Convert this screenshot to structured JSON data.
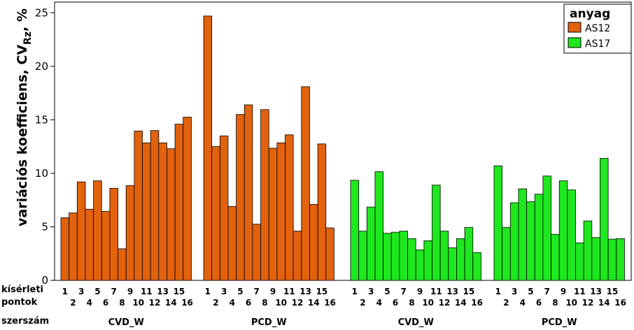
{
  "chart_data": {
    "type": "bar",
    "ylabel": "variációs koefficiens, CV",
    "ylabel_sub": "Rz",
    "ylabel_unit": ", %",
    "ylim": [
      0,
      26
    ],
    "yticks": [
      0,
      5,
      10,
      15,
      20,
      25
    ],
    "grid": false,
    "legend": {
      "title": "anyag",
      "placement": "top-right",
      "entries": [
        {
          "name": "AS12",
          "color": "#e2620e"
        },
        {
          "name": "AS17",
          "color": "#1ee81e"
        }
      ]
    },
    "row_labels": {
      "points_line1": "kísérleti",
      "points_line2": "pontok",
      "tool": "szerszám"
    },
    "groups": [
      {
        "tool": "CVD_W",
        "anyag": "AS12",
        "color": "#e2620e",
        "categories": [
          "1",
          "2",
          "3",
          "4",
          "5",
          "6",
          "7",
          "8",
          "9",
          "10",
          "11",
          "12",
          "13",
          "14",
          "15",
          "16"
        ],
        "values": [
          5.85,
          6.3,
          9.2,
          6.65,
          9.3,
          6.45,
          8.6,
          2.95,
          8.85,
          13.95,
          12.85,
          14.0,
          12.85,
          12.3,
          14.6,
          15.25
        ]
      },
      {
        "tool": "PCD_W",
        "anyag": "AS12",
        "color": "#e2620e",
        "categories": [
          "1",
          "2",
          "3",
          "4",
          "5",
          "6",
          "7",
          "8",
          "9",
          "10",
          "11",
          "12",
          "13",
          "14",
          "15",
          "16"
        ],
        "values": [
          24.7,
          12.5,
          13.5,
          6.9,
          15.5,
          16.4,
          5.25,
          15.95,
          12.35,
          12.85,
          13.6,
          4.6,
          18.1,
          7.1,
          12.75,
          4.9
        ]
      },
      {
        "tool": "CVD_W",
        "anyag": "AS17",
        "color": "#1ee81e",
        "categories": [
          "1",
          "2",
          "3",
          "4",
          "5",
          "6",
          "7",
          "8",
          "9",
          "10",
          "11",
          "12",
          "13",
          "14",
          "15",
          "16"
        ],
        "values": [
          9.35,
          4.6,
          6.85,
          10.15,
          4.4,
          4.5,
          4.6,
          3.9,
          2.85,
          3.7,
          8.9,
          4.6,
          3.05,
          3.9,
          4.95,
          2.6
        ]
      },
      {
        "tool": "PCD_W",
        "anyag": "AS17",
        "color": "#1ee81e",
        "categories": [
          "1",
          "2",
          "3",
          "4",
          "5",
          "6",
          "7",
          "8",
          "9",
          "10",
          "11",
          "12",
          "13",
          "14",
          "15",
          "16"
        ],
        "values": [
          10.7,
          4.95,
          7.25,
          8.55,
          7.35,
          8.05,
          9.75,
          4.3,
          9.3,
          8.45,
          3.5,
          5.55,
          4.0,
          11.4,
          3.85,
          3.9
        ]
      }
    ]
  }
}
